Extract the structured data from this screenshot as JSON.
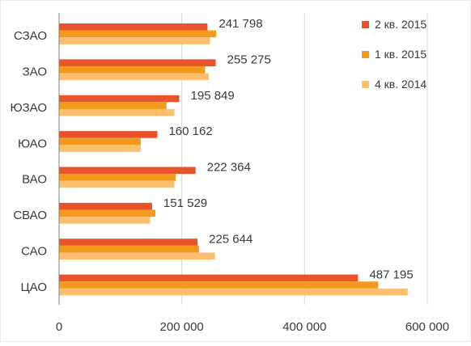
{
  "chart_data": {
    "type": "bar",
    "orientation": "horizontal",
    "categories": [
      "СЗАО",
      "ЗАО",
      "ЮЗАО",
      "ЮАО",
      "ВАО",
      "СВАО",
      "САО",
      "ЦАО"
    ],
    "series": [
      {
        "name": "2 кв. 2015",
        "color": "#E8542A",
        "values": [
          241798,
          255275,
          195849,
          160162,
          222364,
          151529,
          225644,
          487195
        ]
      },
      {
        "name": "1 кв. 2015",
        "color": "#F39A1E",
        "values": [
          256000,
          238000,
          175000,
          133000,
          190000,
          157000,
          228000,
          520000
        ]
      },
      {
        "name": "4 кв. 2014",
        "color": "#FBBF6E",
        "values": [
          246000,
          244000,
          188000,
          133000,
          188000,
          148000,
          254000,
          568000
        ]
      }
    ],
    "data_labels": [
      "241 798",
      "255 275",
      "195 849",
      "160 162",
      "222 364",
      "151 529",
      "225 644",
      "487 195"
    ],
    "x_ticks": [
      0,
      200000,
      400000,
      600000
    ],
    "x_tick_labels": [
      "0",
      "200 000",
      "400 000",
      "600 000"
    ],
    "xlim": [
      0,
      600000
    ],
    "title": "",
    "xlabel": "",
    "ylabel": "",
    "grid": true,
    "legend_position": "top-right"
  }
}
